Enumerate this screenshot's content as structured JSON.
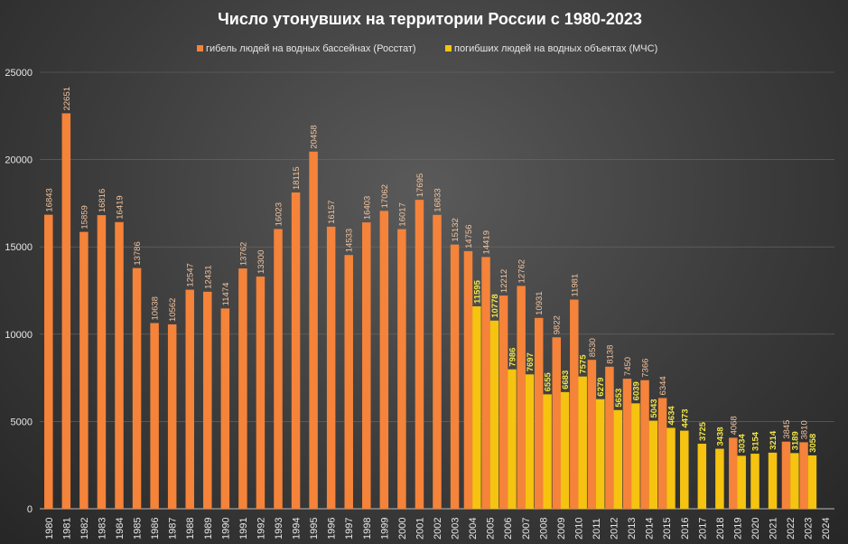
{
  "chart_data": {
    "type": "bar",
    "title": "Число утонувших на территории России с 1980-2023",
    "categories": [
      "1980",
      "1981",
      "1982",
      "1983",
      "1984",
      "1985",
      "1986",
      "1987",
      "1988",
      "1989",
      "1990",
      "1991",
      "1992",
      "1993",
      "1994",
      "1995",
      "1996",
      "1997",
      "1998",
      "1999",
      "2000",
      "2001",
      "2002",
      "2003",
      "2004",
      "2005",
      "2006",
      "2007",
      "2008",
      "2009",
      "2010",
      "2011",
      "2012",
      "2013",
      "2014",
      "2015",
      "2016",
      "2017",
      "2018",
      "2019",
      "2020",
      "2021",
      "2022",
      "2023",
      "2024"
    ],
    "series": [
      {
        "name": "гибель людей на водных бассейнах (Росстат)",
        "color": "#f5833a",
        "values": [
          16843,
          22651,
          15859,
          16816,
          16419,
          13786,
          10638,
          10562,
          12547,
          12431,
          11474,
          13762,
          13300,
          16023,
          18115,
          20458,
          16157,
          14533,
          16403,
          17062,
          16017,
          17695,
          16833,
          15132,
          14756,
          14419,
          12212,
          12762,
          10931,
          9822,
          11981,
          8530,
          8138,
          7450,
          7366,
          6344,
          null,
          null,
          null,
          4068,
          null,
          null,
          3845,
          3810,
          null
        ]
      },
      {
        "name": "погибших людей на водных объектах (МЧС)",
        "color": "#f5c310",
        "values": [
          null,
          null,
          null,
          null,
          null,
          null,
          null,
          null,
          null,
          null,
          null,
          null,
          null,
          null,
          null,
          null,
          null,
          null,
          null,
          null,
          null,
          null,
          null,
          null,
          11595,
          10778,
          7986,
          7697,
          6555,
          6683,
          7575,
          6279,
          5653,
          6039,
          5043,
          4634,
          4473,
          3725,
          3438,
          3034,
          3154,
          3214,
          3189,
          3058,
          null
        ]
      }
    ],
    "ylim": [
      0,
      25000
    ],
    "yticks": [
      0,
      5000,
      10000,
      15000,
      20000,
      25000
    ],
    "grid": true,
    "legend": "top"
  }
}
